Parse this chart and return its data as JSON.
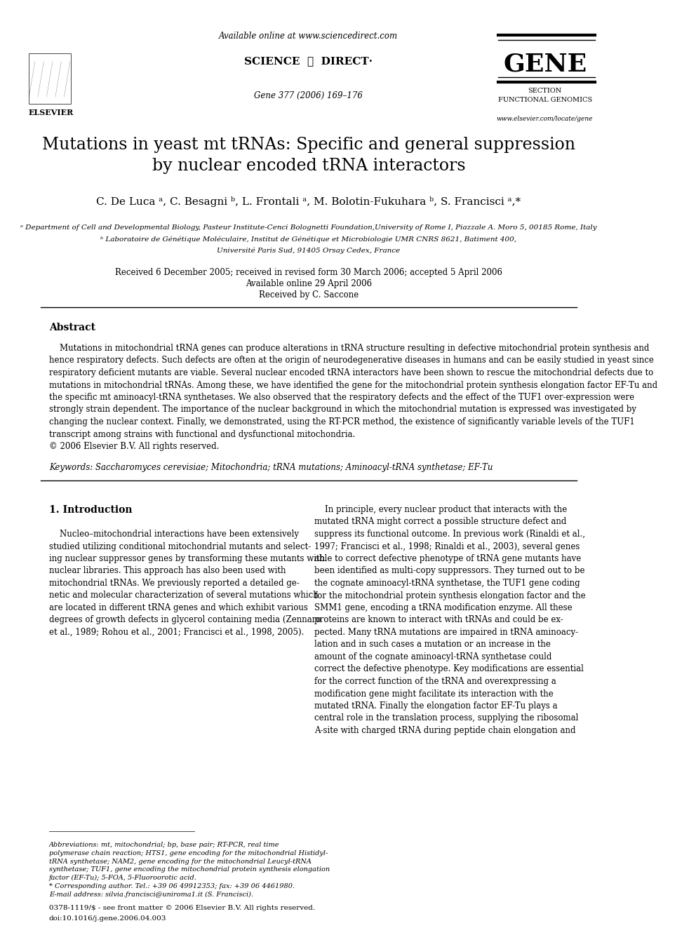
{
  "bg_color": "#ffffff",
  "header": {
    "available_online": "Available online at www.sciencedirect.com",
    "sciencedirect": "SCIENCE ⓓ DIRECT’",
    "journal_info": "Gene 377 (2006) 169–176",
    "gene_title": "GENE",
    "gene_section": "SECTION",
    "gene_subsection": "FUNCTIONAL GENOMICS",
    "gene_url": "www.elsevier.com/locate/gene",
    "elsevier": "ELSEVIER"
  },
  "title": "Mutations in yeast mt tRNAs: Specific and general suppression\nby nuclear encoded tRNA interactors",
  "authors": "C. De Luca à, C. Besagni ᵇ, L. Frontali à, M. Bolotin-Fukuhara ᵇ, S. Francisci à,*",
  "affil_a": "à Department of Cell and Developmental Biology, Pasteur Institute-Cenci Bolognetti Foundation,University of Rome I, Piazzale A. Moro 5, 00185 Rome, Italy",
  "affil_b": "ᵇ Laboratoire de Génétique Moléculaire, Institut de Génétique et Microbiologie UMR CNRS 8621, Batiment 400,",
  "affil_b2": "Université Paris Sud, 91405 Orsay Cedex, France",
  "received": "Received 6 December 2005; received in revised form 30 March 2006; accepted 5 April 2006",
  "available": "Available online 29 April 2006",
  "received_by": "Received by C. Saccone",
  "abstract_title": "Abstract",
  "abstract_text": "    Mutations in mitochondrial tRNA genes can produce alterations in tRNA structure resulting in defective mitochondrial protein synthesis and hence respiratory defects. Such defects are often at the origin of neurodegenerative diseases in humans and can be easily studied in yeast since respiratory deficient mutants are viable. Several nuclear encoded tRNA interactors have been shown to rescue the mitochondrial defects due to mutations in mitochondrial tRNAs. Among these, we have identified the gene for the mitochondrial protein synthesis elongation factor EF-Tu and the specific mt aminoacyl-tRNA synthetases. We also observed that the respiratory defects and the effect of the TUF1 over-expression were strongly strain dependent. The importance of the nuclear background in which the mitochondrial mutation is expressed was investigated by changing the nuclear context. Finally, we demonstrated, using the RT-PCR method, the existence of significantly variable levels of the TUF1 transcript among strains with functional and dysfunctional mitochondria.\n© 2006 Elsevier B.V. All rights reserved.",
  "keywords": "Keywords: Saccharomyces cerevisiae; Mitochondria; tRNA mutations; Aminoacyl-tRNA synthetase; EF-Tu",
  "intro_title": "1. Introduction",
  "intro_left": "    Nucleo–mitochondrial interactions have been extensively studied utilizing conditional mitochondrial mutants and selecting nuclear suppressor genes by transforming these mutants with nuclear libraries. This approach has also been used with mitochondrial tRNAs. We previously reported a detailed genetic and molecular characterization of several mutations which are located in different tRNA genes and which exhibit various degrees of growth defects in glycerol containing media (Zennaro et al., 1989; Rohou et al., 2001; Francisci et al., 1998, 2005).",
  "intro_right": "    In principle, every nuclear product that interacts with the mutated tRNA might correct a possible structure defect and suppress its functional outcome. In previous work (Rinaldi et al., 1997; Francisci et al., 1998; Rinaldi et al., 2003), several genes able to correct defective phenotype of tRNA gene mutants have been identified as multi-copy suppressors. They turned out to be the cognate aminoacyl-tRNA synthetase, the TUF1 gene coding for the mitochondrial protein synthesis elongation factor and the SMM1 gene, encoding a tRNA modification enzyme. All these proteins are known to interact with tRNAs and could be expected. Many tRNA mutations are impaired in tRNA aminoacylation and in such cases a mutation or an increase in the amount of the cognate aminoacyl-tRNA synthetase could correct the defective phenotype. Key modifications are essential for the correct function of the tRNA and overexpressing a modification gene might facilitate its interaction with the mutated tRNA. Finally the elongation factor EF-Tu plays a central role in the translation process, supplying the ribosomal A-site with charged tRNA during peptide chain elongation and",
  "footnote": "Abbreviations: mt, mitochondrial; bp, base pair; RT-PCR, real time polymerase chain reaction; HTS1, gene encoding for the mitochondrial Histidyl-tRNA synthetase; NAM2, gene encoding for the mitochondrial Leucyl-tRNA synthetase; TUF1, gene encoding the mitochondrial protein synthesis elongation factor (EF-Tu); 5-FOA, 5-Fluoroorotic acid.\n* Corresponding author. Tel.: +39 06 49912353; fax: +39 06 4461980.\nE-mail address: silvia.francisci@uniroma1.it (S. Francisci).",
  "copyright_footer": "0378-1119/$ - see front matter © 2006 Elsevier B.V. All rights reserved.\ndoi:10.1016/j.gene.2006.04.003"
}
